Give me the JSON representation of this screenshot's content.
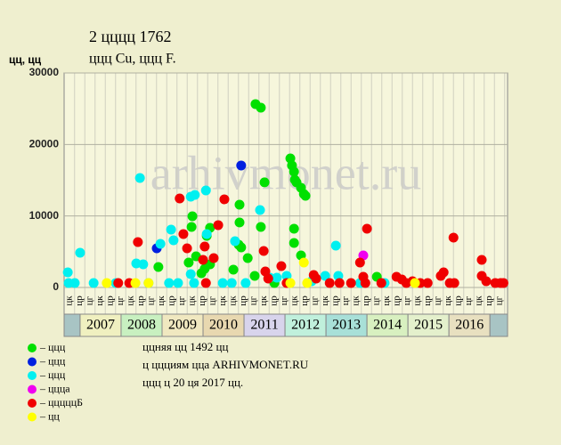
{
  "chart_data": {
    "type": "scatter",
    "title": "2 цццц 1762",
    "subtitle": "ццц Cu, ццц F.",
    "y_label": "цц, цц",
    "watermark": "arhivmonet.ru",
    "xlim": [
      2006.61,
      2017.43
    ],
    "ylim": [
      0,
      30000
    ],
    "yticks": [
      0,
      10000,
      20000,
      30000
    ],
    "grid": true,
    "quarter_labels": [
      "цк",
      "цр",
      "цг",
      "цк",
      "цр",
      "цг",
      "цк",
      "цр",
      "цг",
      "цк",
      "цр",
      "цг",
      "цк",
      "цр",
      "цг",
      "цк",
      "цк",
      "цр",
      "цг",
      "цк",
      "цр",
      "цг",
      "цк",
      "цр",
      "цг",
      "цк",
      "цр",
      "цг",
      "цк",
      "цр",
      "цг",
      "цк",
      "цр",
      "цг",
      "цк",
      "цр",
      "цг",
      "цк",
      "цр",
      "цг",
      "цк",
      "цр",
      "цг"
    ],
    "years": [
      {
        "label": "2007",
        "color": "#f0f0c0"
      },
      {
        "label": "2008",
        "color": "#c8f0c0"
      },
      {
        "label": "2009",
        "color": "#f0e8c0"
      },
      {
        "label": "2010",
        "color": "#e8d8b0"
      },
      {
        "label": "2011",
        "color": "#d8d4ec"
      },
      {
        "label": "2012",
        "color": "#c0f0dc"
      },
      {
        "label": "2013",
        "color": "#a8e0d8"
      },
      {
        "label": "2014",
        "color": "#d8f0c0"
      },
      {
        "label": "2015",
        "color": "#e4f0cc"
      },
      {
        "label": "2016",
        "color": "#e8e0c0"
      }
    ],
    "notes": [
      "ццняя цц 1492 цц",
      "ц ццциям цца ARHIVMONET.RU",
      "ццц ц 20 ця 2017 цц."
    ],
    "series": [
      {
        "name": "– ццц",
        "color": "#00e000",
        "x": [
          2011.28,
          2011.41,
          2011.5,
          2010.89,
          2010.89,
          2010.87,
          2010.93,
          2011.09,
          2010.74,
          2011.41,
          2011.26,
          2012.13,
          2012.17,
          2012.22,
          2012.24,
          2012.28,
          2012.39,
          2012.46,
          2012.5,
          2012.22,
          2012.22,
          2012.39,
          2009.74,
          2009.72,
          2009.83,
          2009.65,
          2010.17,
          2010.09,
          2010.17,
          2010.04,
          2009.96,
          2008.91,
          2014.24,
          2011.74
        ],
        "values": [
          25650,
          25150,
          14700,
          11580,
          9090,
          5980,
          5600,
          4110,
          2490,
          8470,
          1620,
          18050,
          17060,
          16190,
          15060,
          14700,
          13940,
          13070,
          12820,
          8220,
          6220,
          4480,
          9960,
          8470,
          4360,
          3490,
          8340,
          7220,
          3240,
          2610,
          1990,
          2860,
          1490,
          620
        ]
      },
      {
        "name": "– ццц",
        "color": "#0020e0",
        "x": [
          2008.87,
          2010.93
        ],
        "values": [
          5480,
          17060
        ]
      },
      {
        "name": "– ццц",
        "color": "#00f0f0",
        "x": [
          2006.7,
          2006.72,
          2006.87,
          2007.0,
          2007.33,
          2007.87,
          2008.46,
          2008.37,
          2008.54,
          2008.96,
          2009.22,
          2009.28,
          2009.8,
          2009.7,
          2010.07,
          2010.09,
          2009.7,
          2009.78,
          2010.78,
          2011.39,
          2011.63,
          2011.8,
          2012.04,
          2012.65,
          2012.98,
          2013.24,
          2013.3,
          2013.83,
          2014.43,
          2008.67,
          2009.17,
          2009.39,
          2010.48,
          2010.7,
          2011.04
        ],
        "values": [
          2120,
          620,
          620,
          4860,
          620,
          620,
          15310,
          3360,
          3240,
          6100,
          8090,
          6600,
          12950,
          12700,
          13570,
          7470,
          1870,
          620,
          6470,
          10830,
          1370,
          1370,
          1620,
          870,
          1620,
          5850,
          1620,
          620,
          620,
          620,
          620,
          620,
          620,
          620,
          620
        ]
      },
      {
        "name": "– ццца",
        "color": "#f000f0",
        "x": [
          2013.91
        ],
        "values": [
          4480
        ]
      },
      {
        "name": "– цццццБ",
        "color": "#f00000",
        "x": [
          2007.93,
          2008.2,
          2008.41,
          2009.43,
          2009.52,
          2009.61,
          2010.0,
          2010.04,
          2010.37,
          2010.52,
          2010.26,
          2010.07,
          2011.48,
          2011.52,
          2011.59,
          2011.91,
          2012.04,
          2012.7,
          2012.76,
          2013.09,
          2013.33,
          2013.61,
          2013.83,
          2014.0,
          2013.91,
          2013.96,
          2014.35,
          2014.72,
          2014.85,
          2014.96,
          2015.11,
          2015.3,
          2015.48,
          2015.8,
          2015.87,
          2016.02,
          2016.11,
          2016.13,
          2016.8,
          2016.8,
          2016.91,
          2017.13,
          2017.26,
          2017.33
        ],
        "values": [
          620,
          620,
          6350,
          12450,
          7470,
          5480,
          3860,
          5730,
          8720,
          12330,
          4110,
          620,
          5100,
          2240,
          1250,
          2990,
          620,
          1740,
          1250,
          620,
          620,
          620,
          3490,
          8220,
          1490,
          620,
          620,
          1490,
          1120,
          620,
          870,
          620,
          620,
          1620,
          2120,
          620,
          6970,
          620,
          3860,
          1620,
          870,
          620,
          620,
          620
        ]
      },
      {
        "name": "– цц",
        "color": "#ffff00",
        "x": [
          2007.65,
          2008.35,
          2008.67,
          2012.13,
          2012.46,
          2012.54,
          2015.17
        ],
        "values": [
          620,
          620,
          620,
          620,
          3490,
          620,
          620
        ]
      }
    ]
  }
}
